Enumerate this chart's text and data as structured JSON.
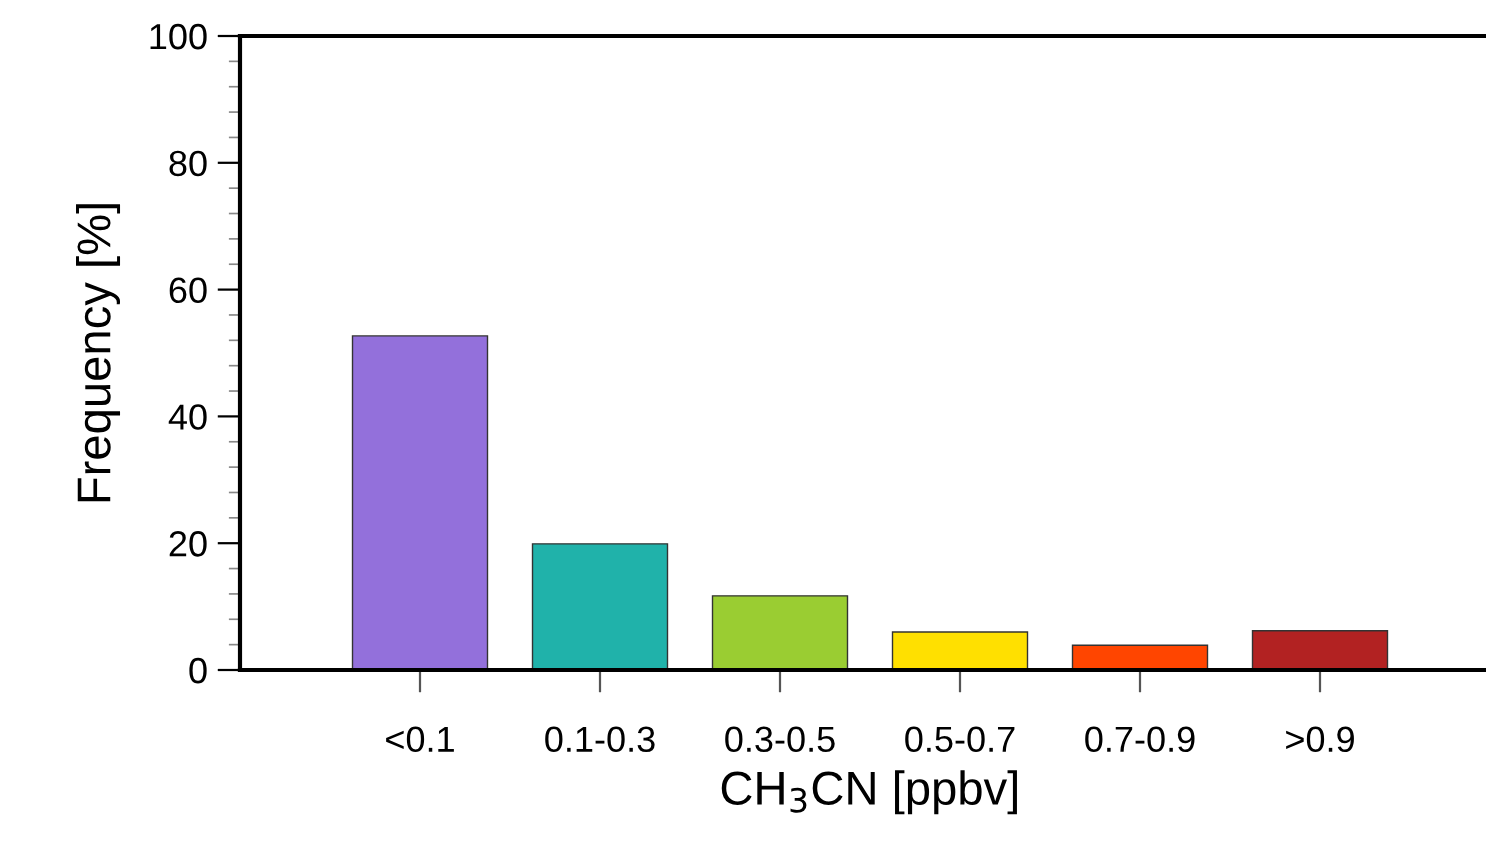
{
  "chart_data": {
    "type": "bar",
    "xlabel": "CH$_{3}$CN [ppbv]",
    "ylabel": "Frequency [%]",
    "categories": [
      "<0.1",
      "0.1-0.3",
      "0.3-0.5",
      "0.5-0.7",
      "0.7-0.9",
      ">0.9"
    ],
    "values": [
      52.7,
      19.9,
      11.7,
      6.0,
      3.9,
      6.2
    ],
    "colors": [
      "#9370db",
      "#20b2aa",
      "#9acd32",
      "#ffe000",
      "#ff4500",
      "#b22222"
    ],
    "ylim": [
      0,
      100
    ],
    "yticks": [
      0,
      20,
      40,
      60,
      80,
      100
    ],
    "grid": false
  }
}
